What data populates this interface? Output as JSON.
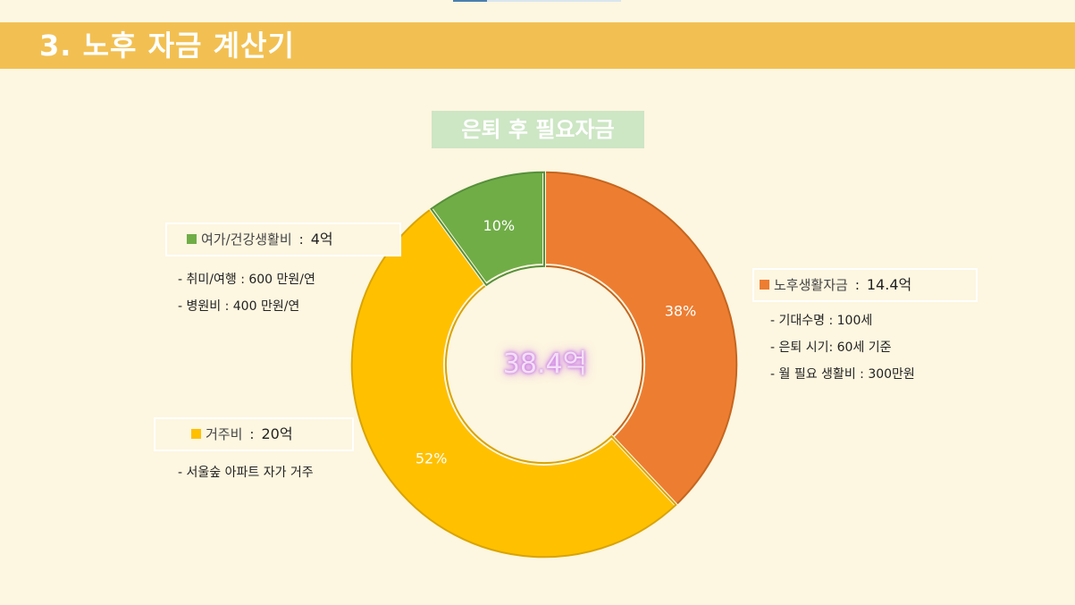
{
  "header": {
    "title": "3. 노후 자금 계산기"
  },
  "chart_data": {
    "type": "pie",
    "title": "은퇴 후 필요자금",
    "center_label": "38.4억",
    "series": [
      {
        "name": "노후생활자금",
        "amount": "14.4억",
        "percent": 38,
        "color": "#ed7d31",
        "details": [
          "기대수명 : 100세",
          "은퇴 시기: 60세 기준",
          "월 필요 생활비 : 300만원"
        ]
      },
      {
        "name": "거주비",
        "amount": "20억",
        "percent": 52,
        "color": "#ffc000",
        "details": [
          "서울숲 아파트 자가 거주"
        ]
      },
      {
        "name": "여가/건강생활비",
        "amount": "4억",
        "percent": 10,
        "color": "#70ad47",
        "details": [
          "취미/여행 : 600 만원/연",
          "병원비 : 400 만원/연"
        ]
      }
    ],
    "slice_labels": [
      "38%",
      "52%",
      "10%"
    ]
  }
}
